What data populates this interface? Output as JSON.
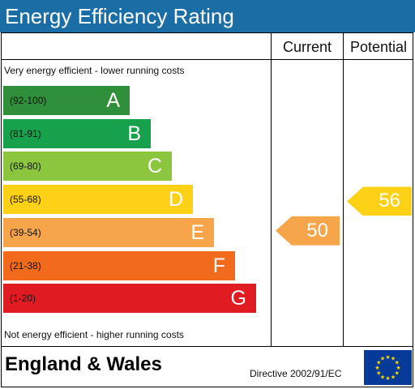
{
  "title": "Energy Efficiency Rating",
  "columns": {
    "current": "Current",
    "potential": "Potential"
  },
  "top_note": "Very energy efficient - lower running costs",
  "bottom_note": "Not energy efficient - higher running costs",
  "footer": {
    "region": "England & Wales",
    "directive": "Directive 2002/91/EC"
  },
  "colors": {
    "header": "#1b6ea5",
    "eu_flag": "#063a99",
    "eu_stars": "#ffdd00"
  },
  "chart_data": {
    "type": "bar",
    "bands": [
      {
        "range": "(92-100)",
        "letter": "A",
        "color": "#2f8f3b"
      },
      {
        "range": "(81-91)",
        "letter": "B",
        "color": "#17a14d"
      },
      {
        "range": "(69-80)",
        "letter": "C",
        "color": "#8cc63f"
      },
      {
        "range": "(55-68)",
        "letter": "D",
        "color": "#fcd116"
      },
      {
        "range": "(39-54)",
        "letter": "E",
        "color": "#f7a54a"
      },
      {
        "range": "(21-38)",
        "letter": "F",
        "color": "#f26b1d"
      },
      {
        "range": "(1-20)",
        "letter": "G",
        "color": "#e11b22"
      }
    ],
    "current": {
      "label": "50",
      "value": 50,
      "band": "E",
      "color": "#f7a54a"
    },
    "potential": {
      "label": "56",
      "value": 56,
      "band": "D",
      "color": "#fcd116"
    }
  }
}
